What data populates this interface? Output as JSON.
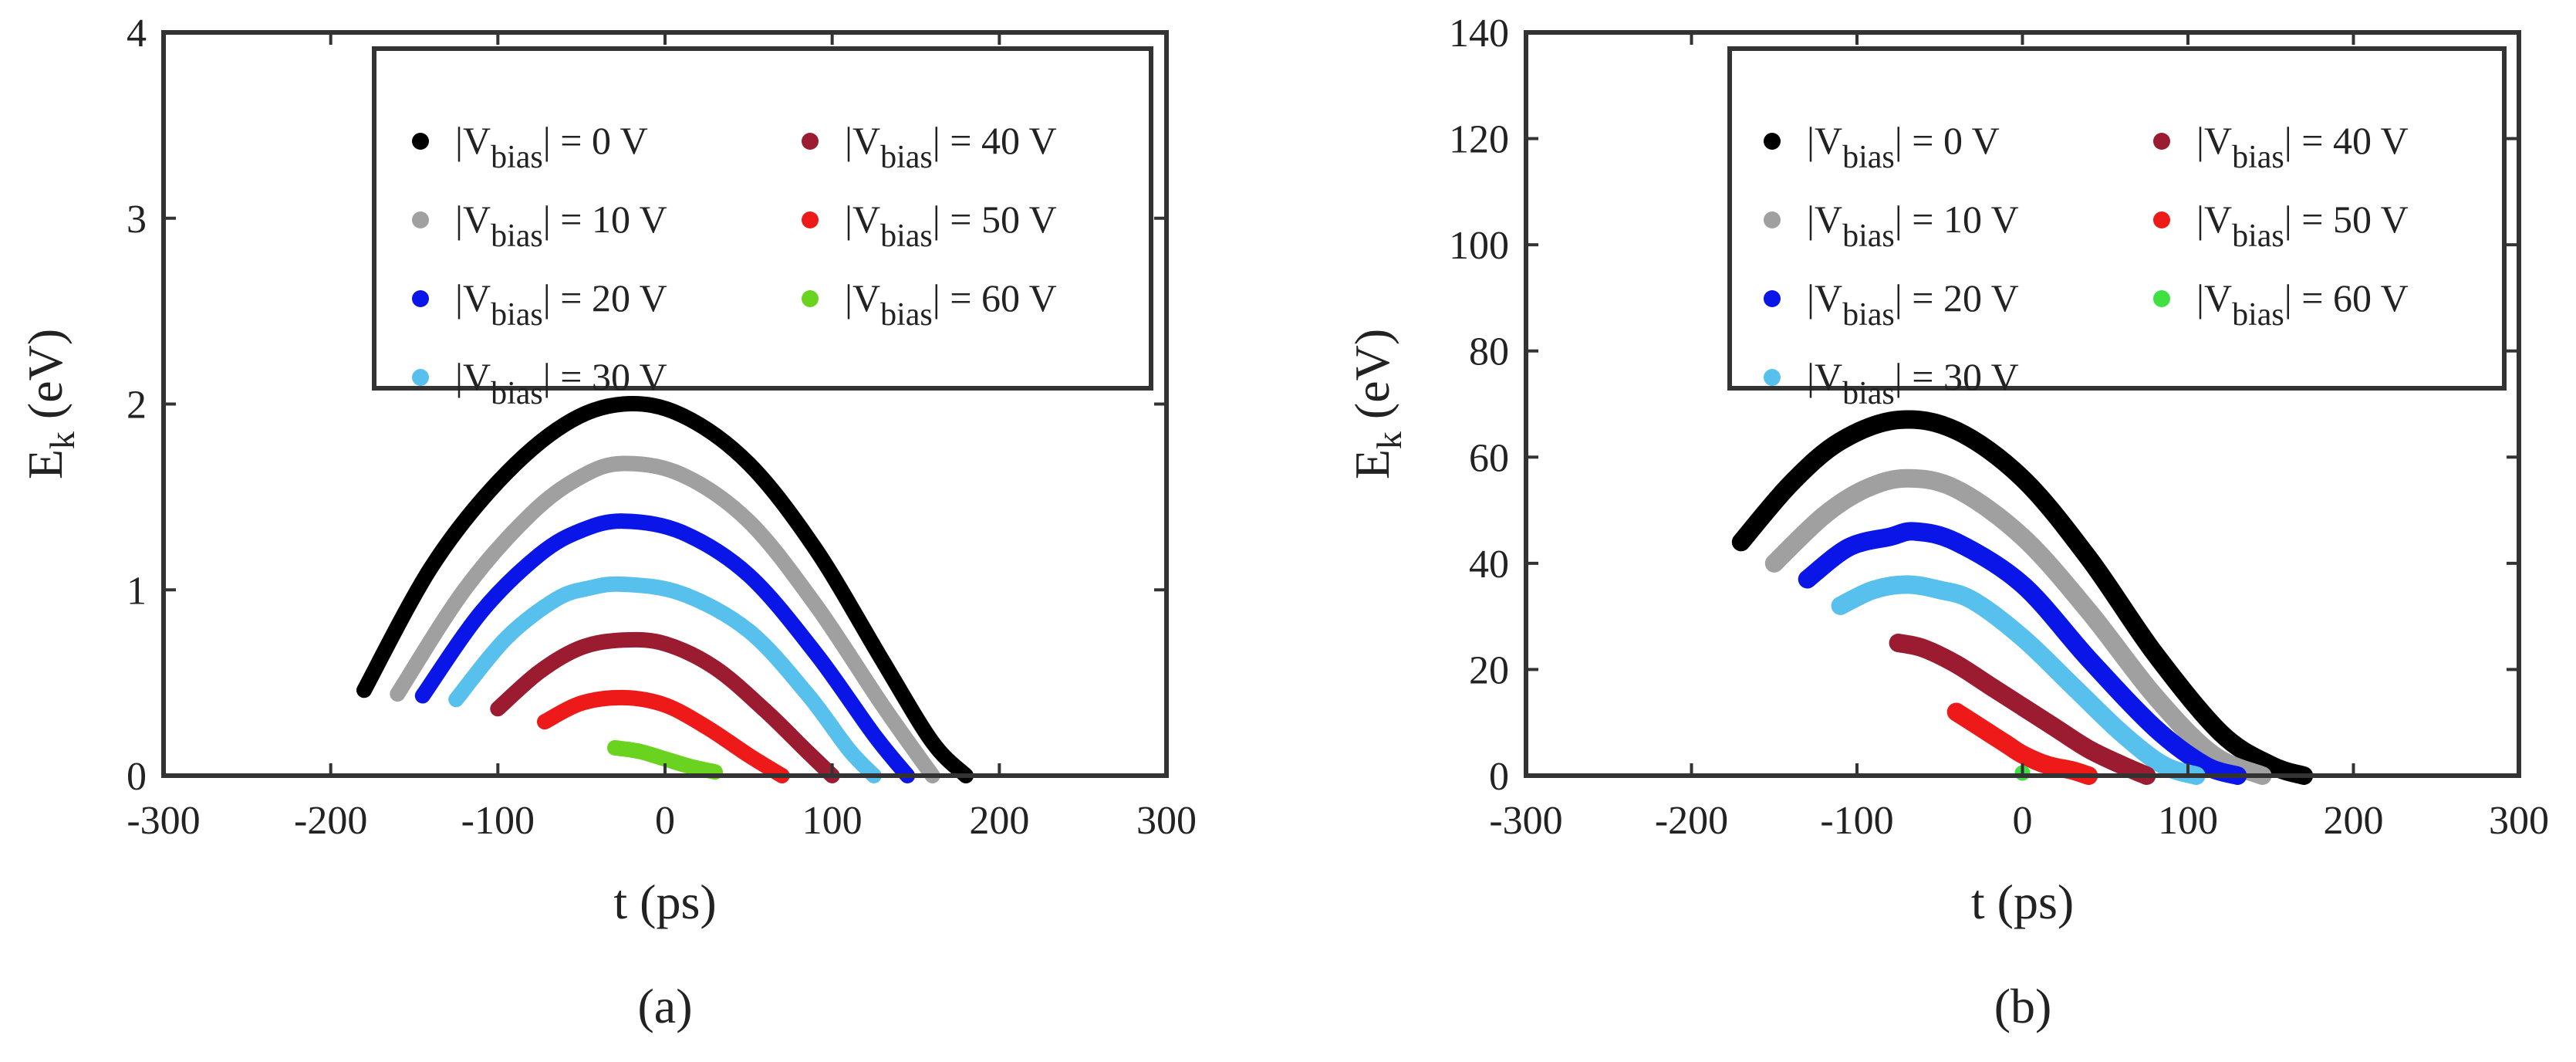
{
  "figure": {
    "legend_entries": [
      "|V_bias| = 0 V",
      "|V_bias| = 10 V",
      "|V_bias| = 20 V",
      "|V_bias| = 30 V",
      "|V_bias| = 40 V",
      "|V_bias| = 50 V",
      "|V_bias| = 60 V"
    ],
    "legend_display": [
      {
        "pre": "|V",
        "sub": "bias",
        "post": "| = 0 V"
      },
      {
        "pre": "|V",
        "sub": "bias",
        "post": "| = 10 V"
      },
      {
        "pre": "|V",
        "sub": "bias",
        "post": "| = 20 V"
      },
      {
        "pre": "|V",
        "sub": "bias",
        "post": "| = 30 V"
      },
      {
        "pre": "|V",
        "sub": "bias",
        "post": "| = 40 V"
      },
      {
        "pre": "|V",
        "sub": "bias",
        "post": "| = 50 V"
      },
      {
        "pre": "|V",
        "sub": "bias",
        "post": "| = 60 V"
      }
    ],
    "ylabel_main": "E",
    "ylabel_sub": "k",
    "ylabel_unit": " (eV)",
    "xlabel": "t (ps)"
  },
  "chart_data": [
    {
      "type": "scatter",
      "panel_label": "(a)",
      "xlabel": "t (ps)",
      "ylabel": "E_k (eV)",
      "xlim": [
        -300,
        300
      ],
      "ylim": [
        0,
        4
      ],
      "xticks": [
        -300,
        -200,
        -100,
        0,
        100,
        200,
        300
      ],
      "yticks": [
        0,
        1,
        2,
        3,
        4
      ],
      "xtick_labels": [
        "-300",
        "-200",
        "-100",
        "0",
        "100",
        "200",
        "300"
      ],
      "ytick_labels": [
        "0",
        "1",
        "2",
        "3",
        "4"
      ],
      "legend_position": "top-right",
      "series": [
        {
          "name": "|V_bias| = 0 V",
          "color": "#000000",
          "x": [
            -180,
            -140,
            -100,
            -60,
            -25,
            10,
            50,
            90,
            130,
            160,
            180
          ],
          "y": [
            0.46,
            1.12,
            1.58,
            1.89,
            2.0,
            1.94,
            1.68,
            1.22,
            0.62,
            0.18,
            0.0
          ]
        },
        {
          "name": "|V_bias| = 10 V",
          "color": "#a0a0a0",
          "x": [
            -160,
            -120,
            -80,
            -50,
            -25,
            10,
            50,
            90,
            130,
            160
          ],
          "y": [
            0.44,
            1.0,
            1.41,
            1.61,
            1.68,
            1.62,
            1.37,
            0.92,
            0.38,
            0.0
          ]
        },
        {
          "name": "|V_bias| = 20 V",
          "color": "#0a16e8",
          "x": [
            -145,
            -110,
            -75,
            -50,
            -25,
            10,
            50,
            90,
            125,
            145
          ],
          "y": [
            0.43,
            0.88,
            1.19,
            1.32,
            1.37,
            1.31,
            1.08,
            0.66,
            0.22,
            0.0
          ]
        },
        {
          "name": "|V_bias| = 30 V",
          "color": "#57c0ec",
          "x": [
            -125,
            -95,
            -65,
            -45,
            -25,
            10,
            50,
            85,
            110,
            125
          ],
          "y": [
            0.41,
            0.74,
            0.95,
            1.01,
            1.03,
            0.98,
            0.78,
            0.44,
            0.14,
            0.0
          ]
        },
        {
          "name": "|V_bias| = 40 V",
          "color": "#9b1b30",
          "x": [
            -100,
            -75,
            -50,
            -25,
            0,
            30,
            60,
            85,
            100
          ],
          "y": [
            0.36,
            0.56,
            0.69,
            0.73,
            0.71,
            0.58,
            0.35,
            0.13,
            0.0
          ]
        },
        {
          "name": "|V_bias| = 50 V",
          "color": "#ee1a1a",
          "x": [
            -72,
            -50,
            -25,
            0,
            25,
            50,
            70
          ],
          "y": [
            0.29,
            0.39,
            0.42,
            0.38,
            0.26,
            0.11,
            0.0
          ]
        },
        {
          "name": "|V_bias| = 60 V",
          "color": "#6ad320",
          "x": [
            -30,
            -15,
            0,
            15,
            30
          ],
          "y": [
            0.15,
            0.13,
            0.09,
            0.05,
            0.02
          ]
        }
      ]
    },
    {
      "type": "scatter",
      "panel_label": "(b)",
      "xlabel": "t (ps)",
      "ylabel": "E_k (eV)",
      "xlim": [
        -300,
        300
      ],
      "ylim": [
        0,
        140
      ],
      "xticks": [
        -300,
        -200,
        -100,
        0,
        100,
        200,
        300
      ],
      "yticks": [
        0,
        20,
        40,
        60,
        80,
        100,
        120,
        140
      ],
      "xtick_labels": [
        "-300",
        "-200",
        "-100",
        "0",
        "100",
        "200",
        "300"
      ],
      "ytick_labels": [
        "0",
        "20",
        "40",
        "60",
        "80",
        "100",
        "120",
        "140"
      ],
      "legend_position": "top-right",
      "series": [
        {
          "name": "|V_bias| = 0 V",
          "color": "#000000",
          "x": [
            -170,
            -140,
            -110,
            -75,
            -40,
            0,
            40,
            80,
            120,
            150,
            170
          ],
          "y": [
            44,
            55,
            63,
            67,
            65,
            56,
            41,
            23,
            8,
            2,
            0
          ]
        },
        {
          "name": "|V_bias| = 10 V",
          "color": "#a0a0a0",
          "x": [
            -150,
            -120,
            -95,
            -70,
            -40,
            0,
            40,
            80,
            115,
            145
          ],
          "y": [
            40,
            49,
            54,
            56,
            54,
            45,
            31,
            15,
            4,
            0
          ]
        },
        {
          "name": "|V_bias| = 20 V",
          "color": "#0a16e8",
          "x": [
            -130,
            -105,
            -80,
            -65,
            -40,
            0,
            40,
            80,
            110,
            130
          ],
          "y": [
            37,
            43,
            45,
            46,
            44,
            36,
            22,
            9,
            2,
            0
          ]
        },
        {
          "name": "|V_bias| = 30 V",
          "color": "#57c0ec",
          "x": [
            -110,
            -90,
            -70,
            -50,
            -30,
            0,
            30,
            60,
            85,
            105
          ],
          "y": [
            32,
            35,
            36,
            35,
            33,
            26,
            17,
            8,
            2,
            0
          ]
        },
        {
          "name": "|V_bias| = 40 V",
          "color": "#9b1b30",
          "x": [
            -75,
            -60,
            -40,
            -20,
            0,
            20,
            40,
            60,
            75
          ],
          "y": [
            25,
            24,
            21,
            17,
            13,
            9,
            5,
            2,
            0
          ]
        },
        {
          "name": "|V_bias| = 50 V",
          "color": "#ee1a1a",
          "x": [
            -40,
            -30,
            -20,
            -10,
            0,
            15,
            30,
            40
          ],
          "y": [
            12,
            10,
            8,
            6,
            4,
            2,
            1,
            0
          ]
        },
        {
          "name": "|V_bias| = 60 V",
          "color": "#3fe040",
          "x": [
            0
          ],
          "y": [
            0.5
          ]
        }
      ]
    }
  ]
}
